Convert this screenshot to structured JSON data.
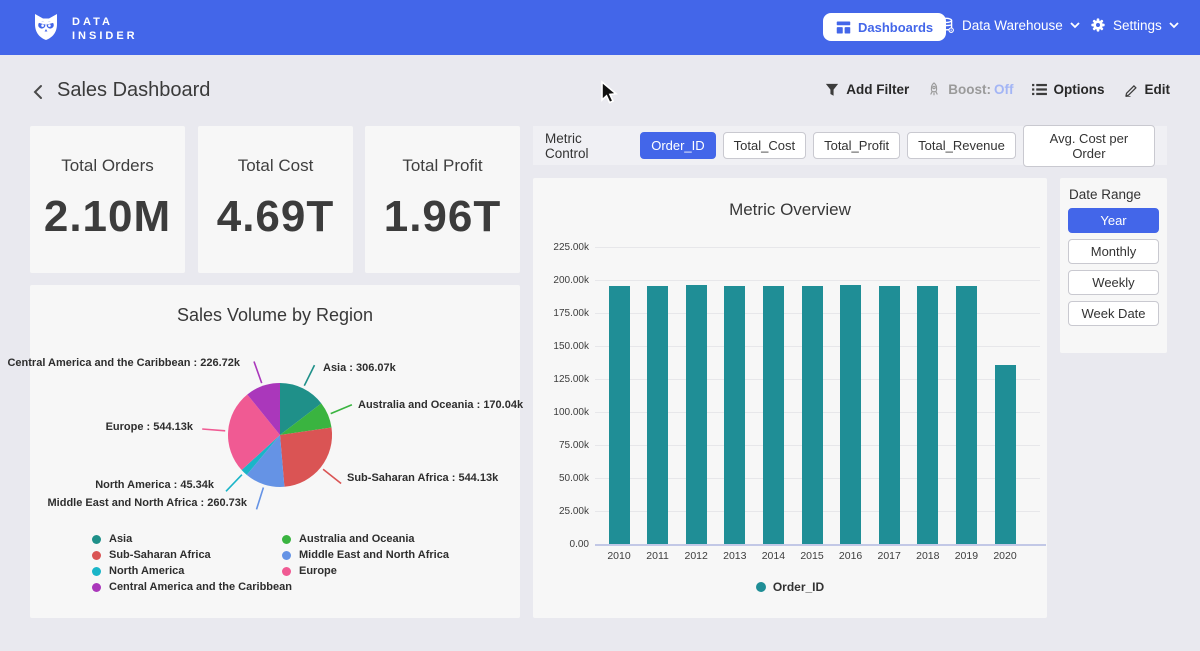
{
  "navbar": {
    "logo_line1": "DATA",
    "logo_line2": "INSIDER",
    "dashboards_label": "Dashboards",
    "data_warehouse_label": "Data Warehouse",
    "settings_label": "Settings"
  },
  "header": {
    "title": "Sales Dashboard",
    "actions": {
      "add_filter": "Add Filter",
      "boost_label": "Boost:",
      "boost_value": "Off",
      "options": "Options",
      "edit": "Edit"
    }
  },
  "kpis": [
    {
      "label": "Total Orders",
      "value": "2.10M"
    },
    {
      "label": "Total Cost",
      "value": "4.69T"
    },
    {
      "label": "Total Profit",
      "value": "1.96T"
    }
  ],
  "metric_control": {
    "label": "Metric Control",
    "buttons": [
      {
        "label": "Order_ID",
        "selected": true
      },
      {
        "label": "Total_Cost",
        "selected": false
      },
      {
        "label": "Total_Profit",
        "selected": false
      },
      {
        "label": "Total_Revenue",
        "selected": false
      },
      {
        "label": "Avg. Cost per Order",
        "selected": false
      }
    ]
  },
  "date_range": {
    "label": "Date Range",
    "buttons": [
      {
        "label": "Year",
        "selected": true
      },
      {
        "label": "Monthly",
        "selected": false
      },
      {
        "label": "Weekly",
        "selected": false
      },
      {
        "label": "Week Date",
        "selected": false
      }
    ]
  },
  "colors": {
    "navbar_blue": "#4366e9",
    "accent_blue": "#4366e9",
    "boost_off": "#a3b5f5",
    "bar_teal": "#1f8e96",
    "page_bg": "#e9e9ef",
    "card_bg": "#f7f7f7"
  },
  "chart_data": [
    {
      "type": "bar",
      "title": "Metric Overview",
      "categories": [
        "2010",
        "2011",
        "2012",
        "2013",
        "2014",
        "2015",
        "2016",
        "2017",
        "2018",
        "2019",
        "2020"
      ],
      "series": [
        {
          "name": "Order_ID",
          "color": "#1f8e96",
          "values": [
            195800,
            195600,
            196500,
            195700,
            195600,
            195500,
            196400,
            195800,
            195600,
            195700,
            135900
          ]
        }
      ],
      "xlabel": "",
      "ylabel": "",
      "ylim": [
        0,
        225000
      ],
      "yticks": [
        "225.00k",
        "200.00k",
        "175.00k",
        "150.00k",
        "125.00k",
        "100.00k",
        "75.00k",
        "50.00k",
        "25.00k",
        "0.00"
      ],
      "grid": true,
      "legend": [
        "Order_ID"
      ],
      "legend_position": "bottom"
    },
    {
      "type": "pie",
      "title": "Sales Volume by Region",
      "unit": "k",
      "slices": [
        {
          "name": "Asia",
          "value": 306.07,
          "display": "Asia : 306.07k",
          "color": "#1f9089"
        },
        {
          "name": "Australia and Oceania",
          "value": 170.04,
          "display": "Australia and Oceania : 170.04k",
          "color": "#3ab440"
        },
        {
          "name": "Sub-Saharan Africa",
          "value": 544.13,
          "display": "Sub-Saharan Africa : 544.13k",
          "color": "#da5454"
        },
        {
          "name": "Middle East and North Africa",
          "value": 260.73,
          "display": "Middle East and North Africa : 260.73k",
          "color": "#6593e5"
        },
        {
          "name": "North America",
          "value": 45.34,
          "display": "North America : 45.34k",
          "color": "#1ab5c8"
        },
        {
          "name": "Europe",
          "value": 544.13,
          "display": "Europe : 544.13k",
          "color": "#f05a93"
        },
        {
          "name": "Central America and the Caribbean",
          "value": 226.72,
          "display": "Central America and the Caribbean : 226.72k",
          "color": "#aa37bb"
        }
      ],
      "legend_columns": [
        [
          "Asia",
          "Sub-Saharan Africa",
          "North America",
          "Central America and the Caribbean"
        ],
        [
          "Australia and Oceania",
          "Middle East and North Africa",
          "Europe"
        ]
      ]
    }
  ]
}
